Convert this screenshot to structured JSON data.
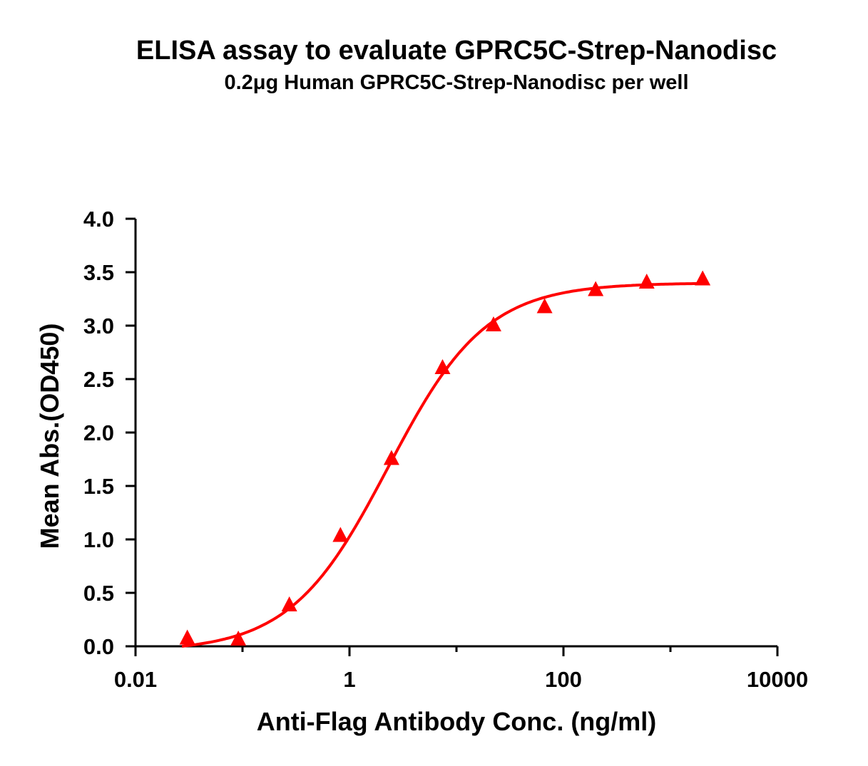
{
  "chart_data": {
    "type": "scatter",
    "title": "ELISA assay to evaluate GPRC5C-Strep-Nanodisc",
    "subtitle": "0.2μg Human GPRC5C-Strep-Nanodisc per well",
    "xlabel": "Anti-Flag Antibody Conc. (ng/ml)",
    "ylabel": "Mean Abs.(OD450)",
    "xscale": "log",
    "xlim": [
      0.01,
      10000
    ],
    "ylim": [
      0,
      4.0
    ],
    "xticks": [
      "0.01",
      "1",
      "100",
      "10000"
    ],
    "yticks": [
      "0.0",
      "0.5",
      "1.0",
      "1.5",
      "2.0",
      "2.5",
      "3.0",
      "3.5",
      "4.0"
    ],
    "grid": false,
    "marker": "triangle",
    "color": "#ff0000",
    "fit_curve": "sigmoidal",
    "x": [
      0.0305,
      0.0914,
      0.274,
      0.823,
      2.47,
      7.41,
      22.2,
      66.7,
      200,
      600,
      2000
    ],
    "y": [
      0.07,
      0.06,
      0.38,
      1.03,
      1.75,
      2.6,
      3.0,
      3.17,
      3.33,
      3.4,
      3.43
    ]
  }
}
